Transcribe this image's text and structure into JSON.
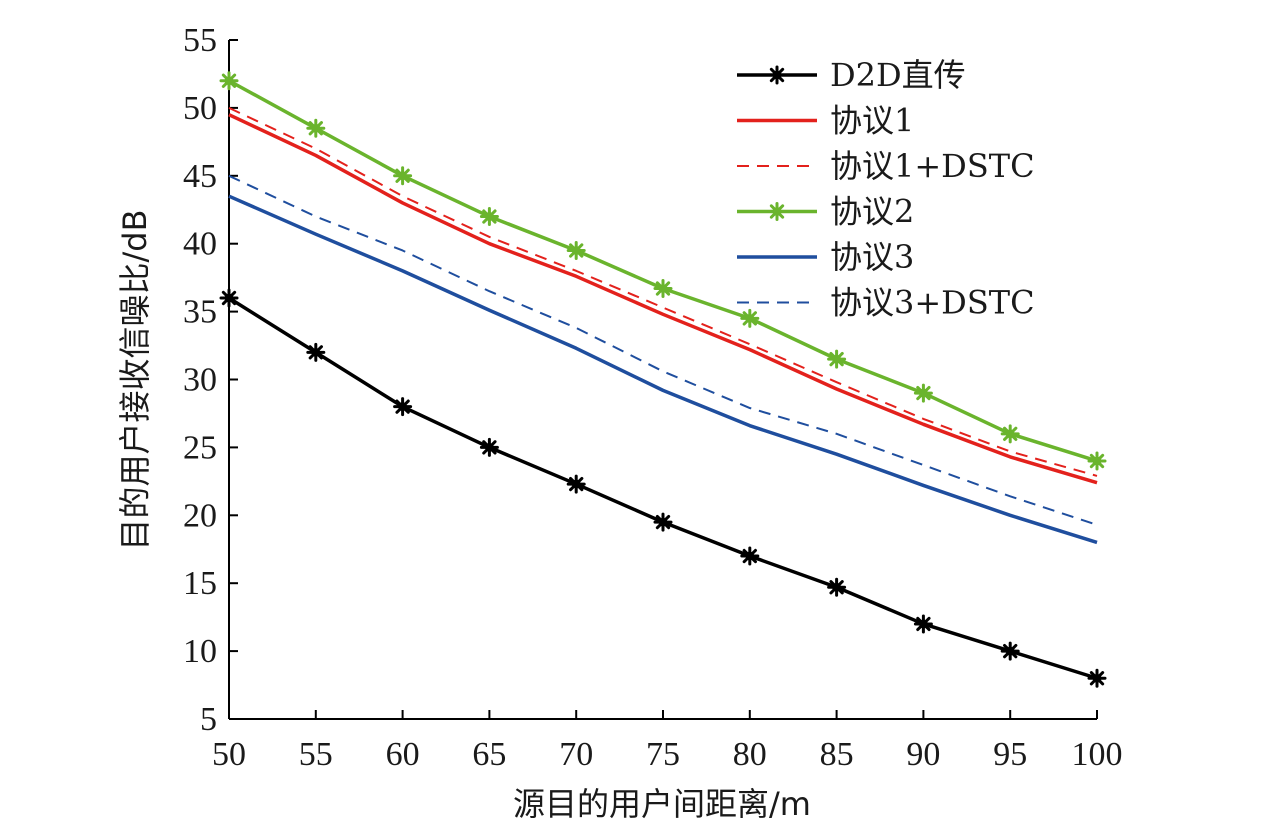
{
  "chart_data": {
    "type": "line",
    "xlabel": "源目的用户间距离/m",
    "ylabel": "目的用户接收信噪比/dB",
    "xlim": [
      50,
      100
    ],
    "ylim": [
      5,
      55
    ],
    "x": [
      50,
      55,
      60,
      65,
      70,
      75,
      80,
      85,
      90,
      95,
      100
    ],
    "x_ticks": [
      50,
      55,
      60,
      65,
      70,
      75,
      80,
      85,
      90,
      95,
      100
    ],
    "y_ticks": [
      5,
      10,
      15,
      20,
      25,
      30,
      35,
      40,
      45,
      50,
      55
    ],
    "grid": false,
    "legend_position": "top-right",
    "series": [
      {
        "name": "D2D直传",
        "color": "#000000",
        "style": "solid",
        "marker": "asterisk",
        "values": [
          36,
          32,
          28,
          25,
          22.3,
          19.5,
          17,
          14.7,
          12,
          10,
          8
        ]
      },
      {
        "name": "协议1",
        "color": "#e3211c",
        "style": "solid",
        "marker": "none",
        "values": [
          49.5,
          46.5,
          43,
          40,
          37.6,
          34.8,
          32.2,
          29.3,
          26.7,
          24.3,
          22.4
        ]
      },
      {
        "name": "协议1+DSTC",
        "color": "#e3211c",
        "style": "dashed",
        "marker": "none",
        "values": [
          50,
          47,
          43.5,
          40.5,
          38,
          35.3,
          32.6,
          29.8,
          27.1,
          24.7,
          22.9
        ]
      },
      {
        "name": "协议2",
        "color": "#6ab42d",
        "style": "solid",
        "marker": "asterisk",
        "values": [
          52,
          48.5,
          45,
          42,
          39.5,
          36.7,
          34.5,
          31.5,
          29,
          26,
          24
        ]
      },
      {
        "name": "协议3",
        "color": "#1f4e9e",
        "style": "solid",
        "marker": "none",
        "values": [
          43.5,
          40.7,
          38,
          35.1,
          32.3,
          29.2,
          26.6,
          24.5,
          22.2,
          20,
          18
        ]
      },
      {
        "name": "协议3+DSTC",
        "color": "#1f4e9e",
        "style": "dashed",
        "marker": "none",
        "values": [
          45,
          42,
          39.5,
          36.5,
          33.8,
          30.6,
          27.9,
          26,
          23.7,
          21.4,
          19.3
        ]
      }
    ]
  }
}
